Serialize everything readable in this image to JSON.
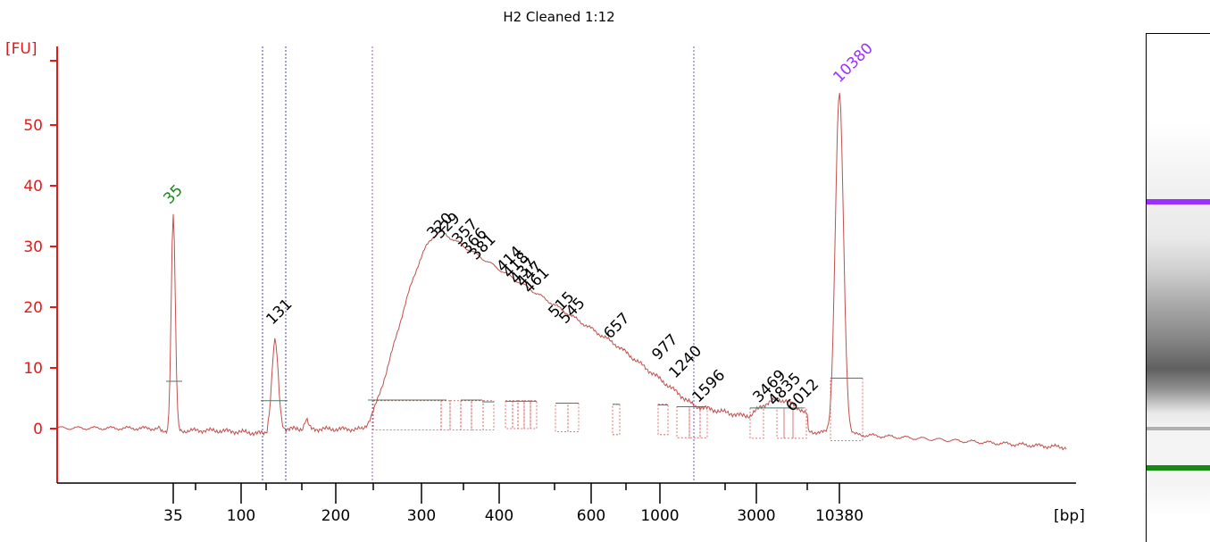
{
  "chart_data": {
    "type": "line",
    "title": "H2 Cleaned 1:12",
    "ylabel": "[FU]",
    "xlabel": "[bp]",
    "ylim": [
      -9,
      60
    ],
    "y_ticks": [
      0,
      10,
      20,
      30,
      40,
      50
    ],
    "x_tick_labels": [
      "35",
      "100",
      "200",
      "300",
      "400",
      "600",
      "1000",
      "3000",
      "10380"
    ],
    "x_axis_scale": "nonlinear (sizing ladder)",
    "grid": false,
    "line_color": "#c0504d",
    "markers": {
      "lower": {
        "label": "35",
        "size_bp": 35,
        "fu": 36,
        "color": "#148a14"
      },
      "upper": {
        "label": "10380",
        "size_bp": 10380,
        "fu": 56,
        "color": "#9b30ff"
      }
    },
    "peaks": [
      {
        "label": "131",
        "size_bp": 131,
        "fu": 14.5
      },
      {
        "label": "320",
        "size_bp": 320,
        "fu": 32.5
      },
      {
        "label": "329",
        "size_bp": 329,
        "fu": 32.5
      },
      {
        "label": "357",
        "size_bp": 357,
        "fu": 31.5
      },
      {
        "label": "366",
        "size_bp": 366,
        "fu": 30.5
      },
      {
        "label": "381",
        "size_bp": 381,
        "fu": 29.5
      },
      {
        "label": "414",
        "size_bp": 414,
        "fu": 27.5
      },
      {
        "label": "418",
        "size_bp": 418,
        "fu": 26.5
      },
      {
        "label": "437",
        "size_bp": 437,
        "fu": 25.5
      },
      {
        "label": "447",
        "size_bp": 447,
        "fu": 25
      },
      {
        "label": "461",
        "size_bp": 461,
        "fu": 24
      },
      {
        "label": "515",
        "size_bp": 515,
        "fu": 19.5
      },
      {
        "label": "545",
        "size_bp": 545,
        "fu": 18.5
      },
      {
        "label": "657",
        "size_bp": 657,
        "fu": 16
      },
      {
        "label": "977",
        "size_bp": 977,
        "fu": 12.5
      },
      {
        "label": "1240",
        "size_bp": 1240,
        "fu": 9.5
      },
      {
        "label": "1596",
        "size_bp": 1596,
        "fu": 5.5
      },
      {
        "label": "3469",
        "size_bp": 3469,
        "fu": 5
      },
      {
        "label": "4835",
        "size_bp": 4835,
        "fu": 5
      },
      {
        "label": "6012",
        "size_bp": 6012,
        "fu": 4
      }
    ],
    "gel_bands": [
      {
        "name": "upper-marker",
        "color": "#9b30ff"
      },
      {
        "name": "lower-marker",
        "color": "#148a14"
      }
    ]
  }
}
